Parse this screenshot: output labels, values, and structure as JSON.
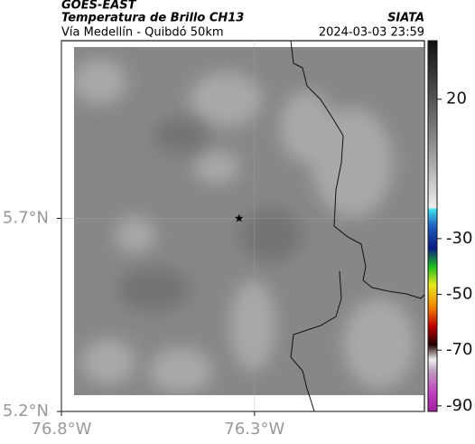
{
  "header": {
    "left_title": "GOES-EAST",
    "subtitle": "Temperatura de Brillo CH13",
    "route": "Vía Medellín - Quibdó 50km",
    "right_title": "SIATA",
    "timestamp": "2024-03-03 23:59"
  },
  "map": {
    "xlim": [
      -76.8,
      -75.86
    ],
    "ylim": [
      5.2,
      6.16
    ],
    "xticks": [
      {
        "value": -76.8,
        "label": "76.8°W"
      },
      {
        "value": -76.3,
        "label": "76.3°W"
      }
    ],
    "yticks": [
      {
        "value": 5.2,
        "label": "5.2°N"
      },
      {
        "value": 5.7,
        "label": "5.7°N"
      }
    ],
    "grid": true,
    "marker": {
      "lon": -76.34,
      "lat": 5.7
    }
  },
  "colorbar": {
    "lim": [
      -92,
      41
    ],
    "ticks": [
      20,
      -30,
      -50,
      -70,
      -90
    ]
  }
}
